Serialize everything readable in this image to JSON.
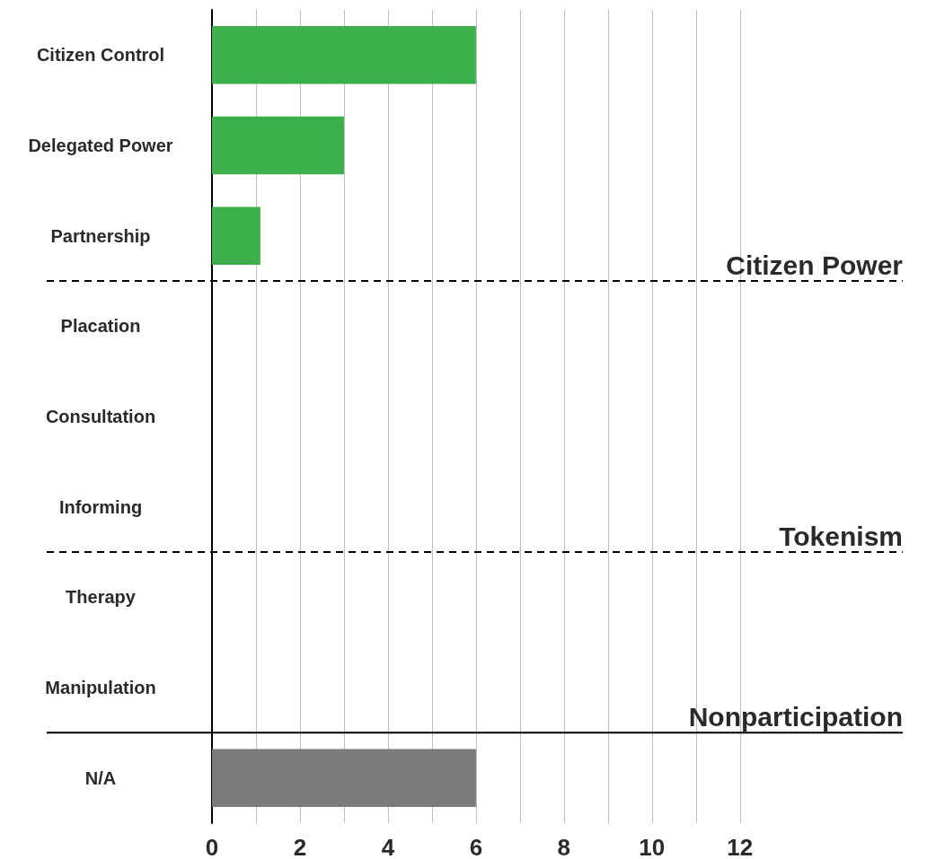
{
  "chart_data": {
    "type": "bar",
    "orientation": "horizontal",
    "categories": [
      "Citizen Control",
      "Delegated Power",
      "Partnership",
      "Placation",
      "Consultation",
      "Informing",
      "Therapy",
      "Manipulation",
      "N/A"
    ],
    "values": [
      6,
      3,
      1.1,
      0,
      0,
      0,
      0,
      0,
      6
    ],
    "colors": [
      "#3db04b",
      "#3db04b",
      "#3db04b",
      "#3db04b",
      "#3db04b",
      "#3db04b",
      "#3db04b",
      "#3db04b",
      "#7b7b7c"
    ],
    "xlim": [
      0,
      15.7
    ],
    "xticks": [
      0,
      {
        "value": 1,
        "label": null
      },
      2,
      {
        "value": 3,
        "label": null
      },
      4,
      {
        "value": 5,
        "label": null
      },
      6,
      {
        "value": 7,
        "label": null
      },
      8,
      {
        "value": 9,
        "label": null
      },
      10,
      {
        "value": 11,
        "label": null
      },
      12
    ],
    "grid": "x",
    "ref_lines": [
      {
        "axis": "y",
        "value": "Partnership",
        "label": "Citizen Power",
        "line_style": "dashed",
        "color": "#000000"
      },
      {
        "axis": "y",
        "value": "Informing",
        "label": "Tokenism",
        "line_style": "dashed",
        "color": "#000000"
      },
      {
        "axis": "y",
        "value": "Manipulation",
        "label": "Nonparticipation",
        "line_style": "solid",
        "color": "#000000"
      }
    ]
  }
}
